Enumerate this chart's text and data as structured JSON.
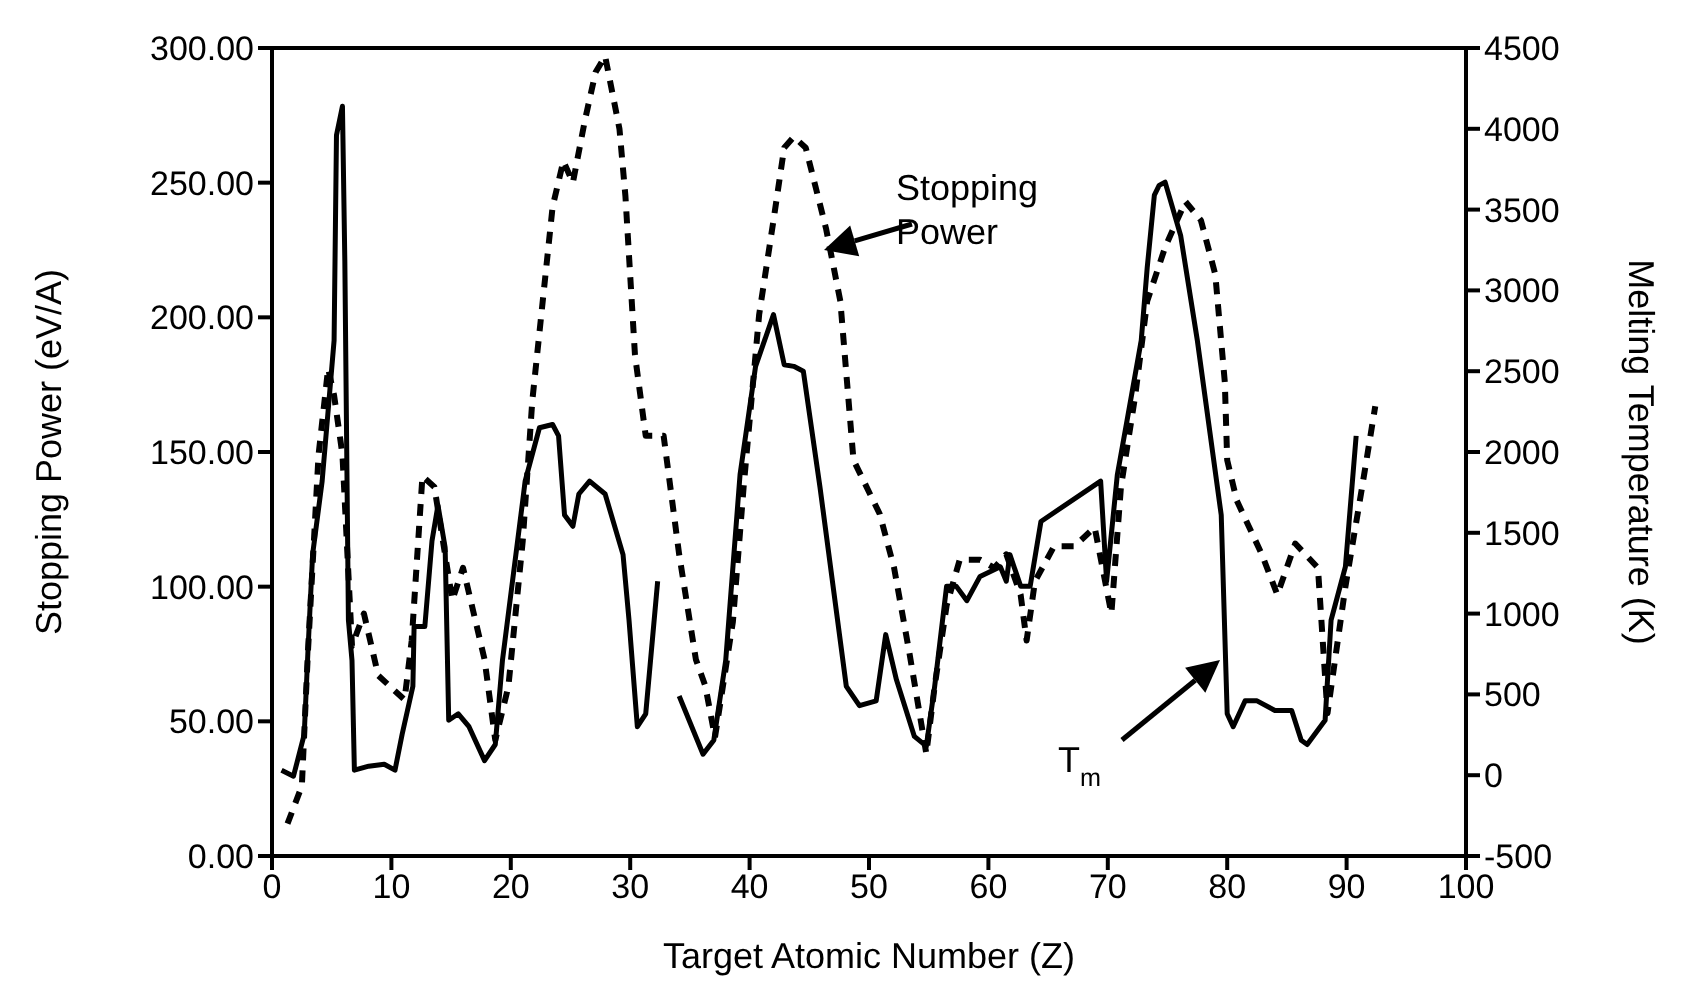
{
  "chart_data": {
    "type": "line",
    "xlabel": "Target Atomic Number (Z)",
    "ylabel": "Stopping Power (eV/A)",
    "y2label": "Melting Temperature (K)",
    "xlim": [
      0,
      100
    ],
    "xticks": [
      0,
      10,
      20,
      30,
      40,
      50,
      60,
      70,
      80,
      90,
      100
    ],
    "ylim": [
      0,
      300
    ],
    "yticks": [
      {
        "value": 0,
        "label": "0.00"
      },
      {
        "value": 50,
        "label": "50.00"
      },
      {
        "value": 100,
        "label": "100.00"
      },
      {
        "value": 150,
        "label": "150.00"
      },
      {
        "value": 200,
        "label": "200.00"
      },
      {
        "value": 250,
        "label": "250.00"
      },
      {
        "value": 300,
        "label": "300.00"
      }
    ],
    "y2lim": [
      -500,
      4500
    ],
    "y2ticks": [
      -500,
      0,
      500,
      1000,
      1500,
      2000,
      2500,
      3000,
      3500,
      4000,
      4500
    ],
    "marker": "none",
    "annotations": [
      "Stopping Power",
      "T$_{m}$"
    ],
    "series": [
      {
        "color": "#000000",
        "line_style": "dashed",
        "x": [
          1.3,
          2.5,
          3,
          3.9,
          4.7,
          5.2,
          5.9,
          6.7,
          7.7,
          8.9,
          11.1,
          11.7,
          12.6,
          13.6,
          15.1,
          16,
          17.8,
          18.7,
          19.8,
          21,
          21.8,
          23.5,
          24.4,
          25.2,
          26.2,
          27.1,
          27.9,
          29.1,
          29.6,
          30.4,
          31.3,
          32.8,
          34.1,
          35.5,
          36.3,
          37.1,
          38.6,
          39.5,
          40.8,
          42,
          42.9,
          43.7,
          44.7,
          46.4,
          47.6,
          48.7,
          50.9,
          52.1,
          53.4,
          54.8,
          55.5,
          56.5,
          57.6,
          59.3,
          60.5,
          61.5,
          62.7,
          63.2,
          63.9,
          65.5,
          67.2,
          68.9,
          70.3,
          71.1,
          72.3,
          73.3,
          74.8,
          76.5,
          77.8,
          79,
          79.8,
          80,
          80.8,
          82.9,
          84.2,
          85.7,
          87.6,
          88.4,
          89.9,
          91.3,
          92.4
        ],
        "values": [
          12,
          26,
          75,
          149,
          181,
          171,
          149,
          78,
          90,
          67,
          58,
          80,
          141,
          137,
          95,
          107,
          73,
          43,
          63,
          117,
          169,
          241,
          258,
          250,
          273,
          291,
          297,
          270,
          245,
          186,
          156,
          156,
          112,
          73,
          63,
          44,
          87,
          137,
          201,
          236,
          263,
          267,
          263,
          233,
          206,
          147,
          127,
          107,
          75,
          38,
          63,
          93,
          110,
          110,
          107,
          112,
          97,
          80,
          102,
          115,
          115,
          122,
          90,
          137,
          171,
          206,
          226,
          243,
          236,
          216,
          176,
          147,
          132,
          112,
          97,
          116,
          107,
          53,
          100,
          137,
          167
        ]
      },
      {
        "color": "#000000",
        "line_style": "solid",
        "axis": "y2",
        "x": [
          0.8,
          1.8,
          2.7,
          3,
          3.4,
          4.2,
          5.2,
          5.4,
          5.9,
          6.1,
          6.4,
          6.7,
          6.9,
          8.1,
          9.4,
          10.3,
          10.9,
          11.8,
          11.9,
          12.8,
          13.4,
          13.9,
          14.5,
          14.8,
          15.6,
          16.5,
          17.8,
          18.7,
          19.3,
          21,
          21.2,
          22.4,
          23.5,
          24,
          24.5,
          25.2,
          25.7,
          26.6,
          27.9,
          29.4,
          29.9,
          30.6,
          31.3,
          32.3,
          33.2,
          34.1,
          36.1,
          37,
          38,
          39.2,
          40.5,
          42,
          42.9,
          43.7,
          44.5,
          45.9,
          48.1,
          49.2,
          50.6,
          51.4,
          52.3,
          53.8,
          54.8,
          55.5,
          56.5,
          57.3,
          58.2,
          59.3,
          61,
          61.5,
          61.8,
          62.7,
          63.5,
          64.4,
          69.4,
          69.9,
          70.8,
          71.6,
          72.8,
          73.3,
          73.9,
          74.3,
          74.8,
          76.1,
          77.5,
          79.5,
          80,
          80.5,
          81.5,
          82.5,
          84,
          85.4,
          86.2,
          86.7,
          88.2,
          88.7,
          89.9,
          90.8
        ],
        "values": [
          31,
          -6,
          253,
          750,
          1365,
          1820,
          2690,
          3960,
          4140,
          3180,
          960,
          710,
          31,
          56,
          68,
          31,
          253,
          550,
          920,
          920,
          1450,
          1670,
          1410,
          340,
          380,
          300,
          90,
          190,
          710,
          1700,
          1820,
          2150,
          2170,
          2100,
          1610,
          1540,
          1740,
          1820,
          1740,
          1365,
          960,
          300,
          380,
          1200,
          null,
          490,
          130,
          216,
          710,
          1860,
          2530,
          2850,
          2540,
          2530,
          2500,
          1780,
          550,
          430,
          460,
          870,
          590,
          240,
          180,
          550,
          1170,
          1170,
          1080,
          1230,
          1290,
          1200,
          1365,
          1170,
          1170,
          1570,
          1820,
          1200,
          1860,
          2190,
          2690,
          3140,
          3590,
          3650,
          3670,
          3340,
          2690,
          1610,
          380,
          300,
          460,
          460,
          400,
          400,
          216,
          190,
          340,
          960,
          1290,
          2100
        ]
      }
    ]
  }
}
